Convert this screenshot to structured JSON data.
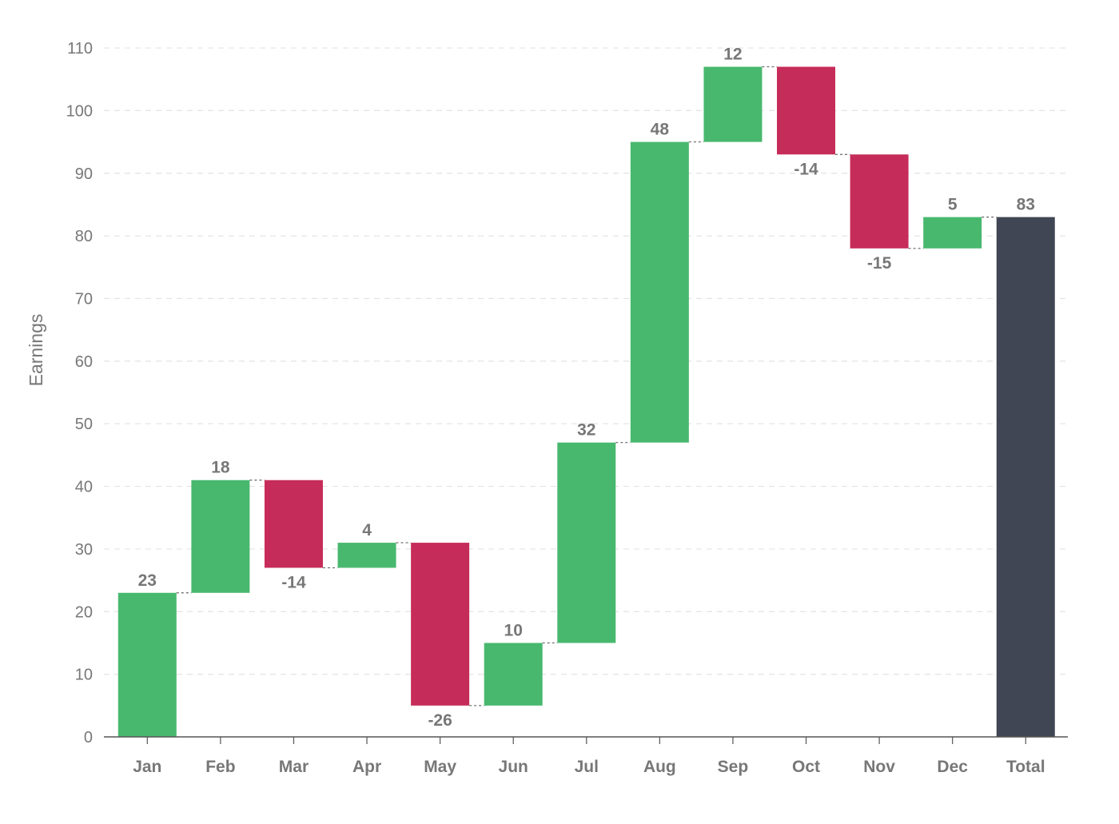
{
  "chart_data": {
    "type": "waterfall",
    "ylabel": "Earnings",
    "xlabel": "",
    "ylim": [
      0,
      110
    ],
    "yticks": [
      0,
      10,
      20,
      30,
      40,
      50,
      60,
      70,
      80,
      90,
      100,
      110
    ],
    "grid": true,
    "categories": [
      "Jan",
      "Feb",
      "Mar",
      "Apr",
      "May",
      "Jun",
      "Jul",
      "Aug",
      "Sep",
      "Oct",
      "Nov",
      "Dec",
      "Total"
    ],
    "values": [
      23,
      18,
      -14,
      4,
      -26,
      10,
      32,
      48,
      12,
      -14,
      -15,
      5,
      83
    ],
    "labels": [
      "23",
      "18",
      "-14",
      "4",
      "-26",
      "10",
      "32",
      "48",
      "12",
      "-14",
      "-15",
      "5",
      "83"
    ],
    "total_index": 12,
    "colors": {
      "increase": "#48b86e",
      "decrease": "#c62c59",
      "total": "#414654",
      "grid": "#e3e3e3",
      "axis": "#555555",
      "tick_text": "#777777",
      "value_text": "#777777"
    }
  }
}
